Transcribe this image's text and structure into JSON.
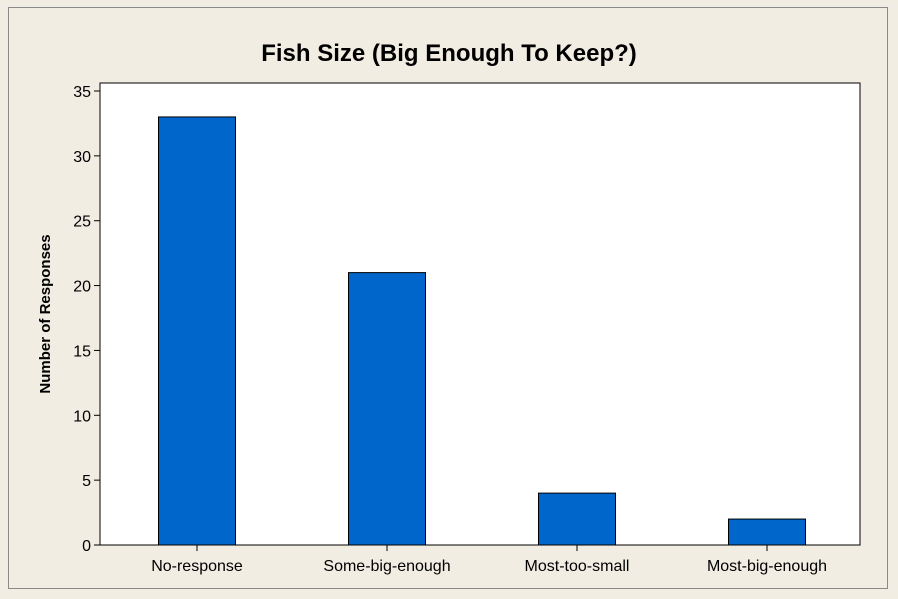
{
  "chart_data": {
    "type": "bar",
    "title": "Fish Size (Big Enough To Keep?)",
    "xlabel": "",
    "ylabel": "Number of Responses",
    "categories": [
      "No-response",
      "Some-big-enough",
      "Most-too-small",
      "Most-big-enough"
    ],
    "values": [
      33,
      21,
      4,
      2
    ],
    "ylim": [
      0,
      35
    ],
    "yticks": [
      0,
      5,
      10,
      15,
      20,
      25,
      30,
      35
    ],
    "grid": false,
    "bar_color": "#0066cc",
    "background_color": "#f2ede3",
    "plot_background_color": "#ffffff"
  }
}
